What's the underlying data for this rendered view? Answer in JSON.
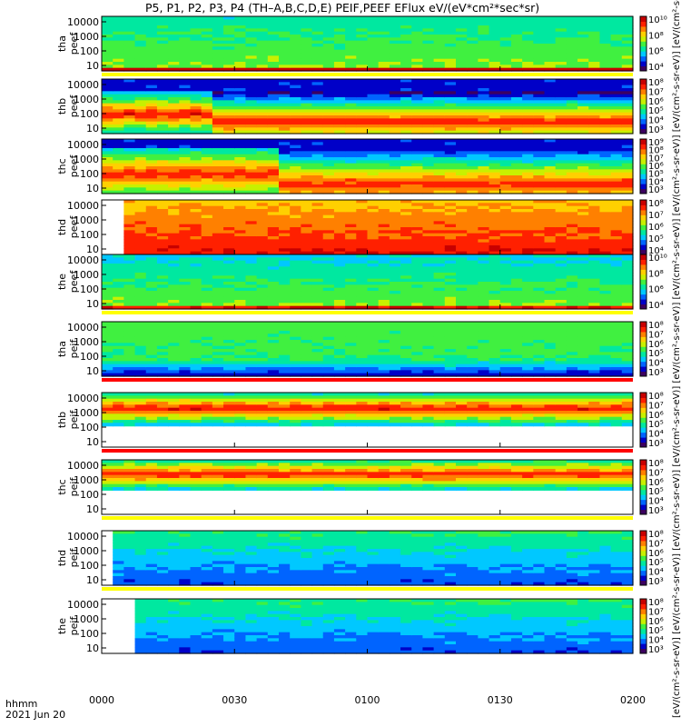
{
  "title": "P5, P1, P2, P3, P4 (TH–A,B,C,D,E) PEIF,PEEF EFlux eV/(eV*cm²*sec*sr)",
  "colorbar_label": "[eV/(cm²-s-sr-eV)] [eV/(cm²-s-sr-eV)] [eV/(cm²-s-sr-eV)] [eV/(cm²-s-sr-eV)] [eV/(cm²-s-sr-eV)] [eV/(cm²-s-sr-eV)] [eV/(cm²-s-sr-eV)] [eV/(cm²-s-sr-eV)] [eV/(cm²-s-sr-eV)] [eV/(cm²-s-sr-eV)]",
  "x_footer": {
    "line1": "hhmm",
    "line2": "2021 Jun 20"
  },
  "colors": {
    "colormap": [
      "#3c0060",
      "#0000c8",
      "#0064ff",
      "#00c8ff",
      "#00e8a0",
      "#40f040",
      "#c8f000",
      "#ffd000",
      "#ff8000",
      "#ff2000",
      "#c80000"
    ],
    "flag_yellow": "#ffff00",
    "flag_red": "#ff0000"
  },
  "chart_data": {
    "type": "heatmap",
    "x_ticks": [
      "0000",
      "0030",
      "0100",
      "0130",
      "0200"
    ],
    "x_range": [
      "00:00",
      "02:00"
    ],
    "y_scale": "log",
    "y_ticks": [
      "10",
      "100",
      "1000",
      "10000"
    ],
    "panels": [
      {
        "label": "tha\npeef",
        "label1": "tha",
        "label2": "peef",
        "cb_ticks": [
          "10⁴",
          "10⁶",
          "10⁸",
          "10¹⁰"
        ],
        "pattern": "e_a"
      },
      {
        "label": "thb\npeef",
        "label1": "thb",
        "label2": "peef",
        "cb_ticks": [
          "10³",
          "10⁴",
          "10⁵",
          "10⁶",
          "10⁷",
          "10⁸"
        ],
        "pattern": "e_b"
      },
      {
        "label": "thc\npeef",
        "label1": "thc",
        "label2": "peef",
        "cb_ticks": [
          "10³",
          "10⁴",
          "10⁵",
          "10⁶",
          "10⁷",
          "10⁸",
          "10⁹"
        ],
        "pattern": "e_c"
      },
      {
        "label": "thd\npeef",
        "label1": "thd",
        "label2": "peef",
        "cb_ticks": [
          "10⁴",
          "10⁵",
          "10⁶",
          "10⁷",
          "10⁸"
        ],
        "pattern": "e_d"
      },
      {
        "label": "the\npeef",
        "label1": "the",
        "label2": "peef",
        "cb_ticks": [
          "10⁴",
          "10⁶",
          "10⁸",
          "10¹⁰"
        ],
        "pattern": "e_e"
      },
      {
        "label": "tha\npeif",
        "label1": "tha",
        "label2": "peif",
        "cb_ticks": [
          "10³",
          "10⁴",
          "10⁵",
          "10⁶",
          "10⁷",
          "10⁸"
        ],
        "pattern": "i_a"
      },
      {
        "label": "thb\npeif",
        "label1": "thb",
        "label2": "peif",
        "cb_ticks": [
          "10³",
          "10⁴",
          "10⁵",
          "10⁶",
          "10⁷",
          "10⁸"
        ],
        "pattern": "i_b"
      },
      {
        "label": "thc\npeif",
        "label1": "thc",
        "label2": "peif",
        "cb_ticks": [
          "10³",
          "10⁴",
          "10⁵",
          "10⁶",
          "10⁷",
          "10⁸"
        ],
        "pattern": "i_c"
      },
      {
        "label": "thd\npeif",
        "label1": "thd",
        "label2": "peif",
        "cb_ticks": [
          "10³",
          "10⁴",
          "10⁵",
          "10⁶",
          "10⁷",
          "10⁸"
        ],
        "pattern": "i_d"
      },
      {
        "label": "the\npeif",
        "label1": "the",
        "label2": "peif",
        "cb_ticks": [
          "10³",
          "10⁴",
          "10⁵",
          "10⁶",
          "10⁷",
          "10⁸"
        ],
        "pattern": "i_e"
      }
    ]
  }
}
